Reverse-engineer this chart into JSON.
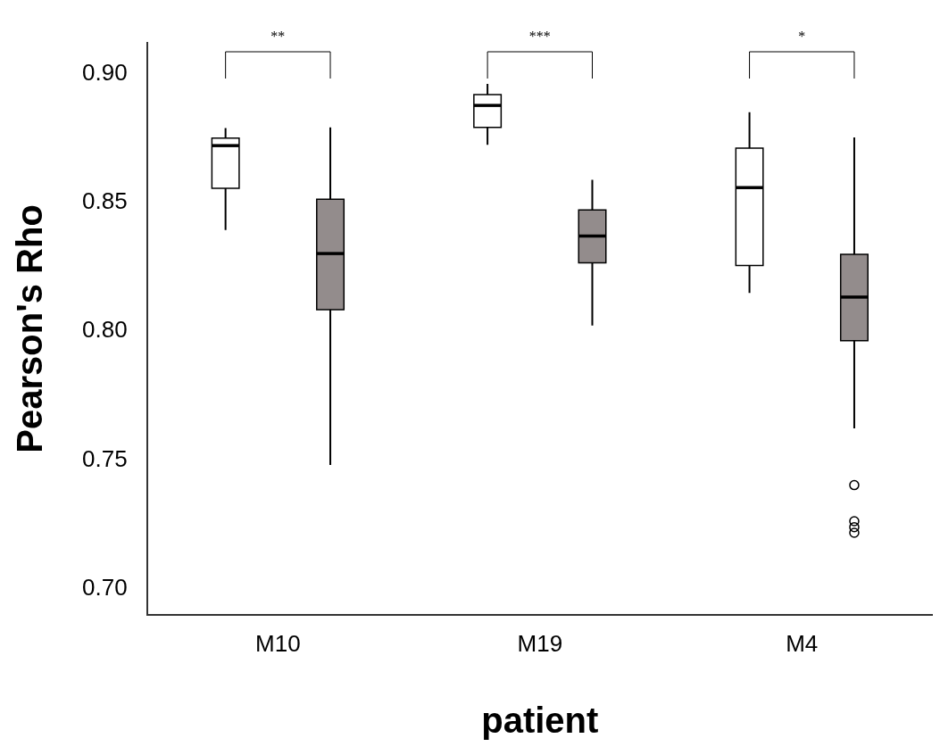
{
  "chart_data": {
    "type": "box",
    "xlabel": "patient",
    "ylabel": "Pearson's Rho",
    "categories": [
      "M10",
      "M19",
      "M4"
    ],
    "ylim": [
      0.69,
      0.912
    ],
    "yticks": [
      {
        "value": 0.7,
        "label": "0.70"
      },
      {
        "value": 0.75,
        "label": "0.75"
      },
      {
        "value": 0.8,
        "label": "0.80"
      },
      {
        "value": 0.85,
        "label": "0.85"
      },
      {
        "value": 0.9,
        "label": "0.90"
      }
    ],
    "grid": false,
    "legend": false,
    "annotations": [
      "**",
      "***",
      "*"
    ],
    "series": [
      {
        "color": "#ffffff",
        "boxes": [
          {
            "low": 0.8393,
            "q1": 0.8555,
            "median": 0.8721,
            "q3": 0.875,
            "high": 0.8789
          },
          {
            "low": 0.8724,
            "q1": 0.8792,
            "median": 0.8877,
            "q3": 0.8919,
            "high": 0.8961
          },
          {
            "low": 0.8149,
            "q1": 0.8256,
            "median": 0.8558,
            "q3": 0.8711,
            "high": 0.8851
          }
        ]
      },
      {
        "color": "#938c8c",
        "boxes": [
          {
            "low": 0.7481,
            "q1": 0.8084,
            "median": 0.8302,
            "q3": 0.8513,
            "high": 0.8792
          },
          {
            "low": 0.8023,
            "q1": 0.8266,
            "median": 0.837,
            "q3": 0.8471,
            "high": 0.8588
          },
          {
            "low": 0.7623,
            "q1": 0.7964,
            "median": 0.8133,
            "q3": 0.8299,
            "high": 0.8753,
            "outliers": [
              0.7403,
              0.7263,
              0.724,
              0.7218
            ]
          }
        ]
      }
    ]
  }
}
